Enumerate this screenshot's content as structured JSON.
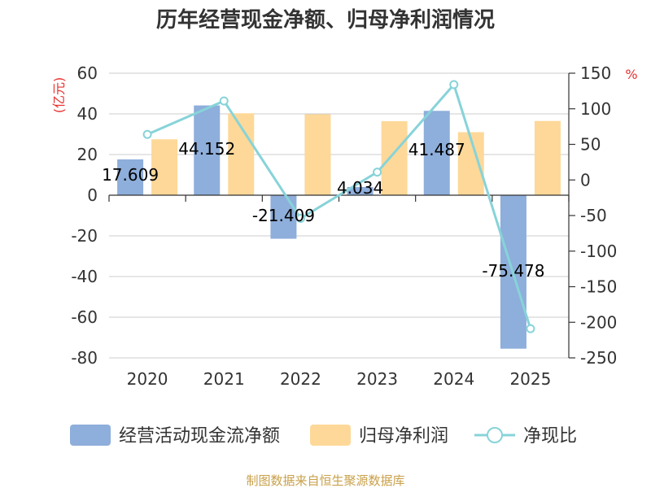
{
  "chart_data": {
    "type": "bar",
    "title": "历年经营现金净额、归母净利润情况",
    "categories": [
      "2020",
      "2021",
      "2022",
      "2023",
      "2024",
      "2025"
    ],
    "left_unit": "(亿元)",
    "right_unit": "%",
    "ylim": [
      -80,
      60
    ],
    "y_ticks": [
      60,
      40,
      20,
      0,
      -20,
      -40,
      -60,
      -80
    ],
    "y2lim": [
      -250,
      150
    ],
    "y2_ticks": [
      150,
      100,
      50,
      0,
      -50,
      -100,
      -150,
      -200,
      -250
    ],
    "series": [
      {
        "name": "经营活动现金流净额",
        "type": "bar",
        "axis": "left",
        "color": "#8eaedb",
        "values": [
          17.609,
          44.152,
          -21.409,
          4.034,
          41.487,
          -75.478
        ],
        "labels": [
          "17.609",
          "44.152",
          "-21.409",
          "4.034",
          "41.487",
          "-75.478"
        ]
      },
      {
        "name": "归母净利润",
        "type": "bar",
        "axis": "left",
        "color": "#fdd898",
        "values": [
          27.5,
          40.3,
          39.8,
          36.4,
          31.0,
          36.5
        ]
      },
      {
        "name": "净现比",
        "type": "line",
        "axis": "right",
        "color": "#87d3d9",
        "values": [
          64,
          111,
          -54,
          11,
          134,
          -209
        ]
      }
    ]
  },
  "source": "制图数据来自恒生聚源数据库"
}
